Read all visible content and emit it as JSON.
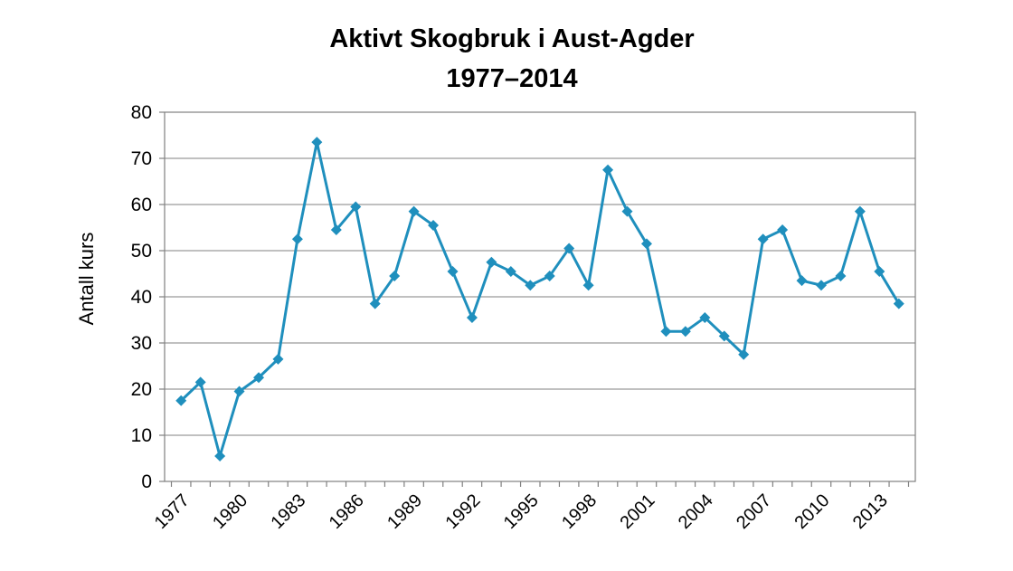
{
  "chart_data": {
    "type": "line",
    "title": [
      "Aktivt Skogbruk i Aust-Agder",
      "1977–2014"
    ],
    "xlabel": "",
    "ylabel": "Antall kurs",
    "ylim": [
      0,
      80
    ],
    "yticks": [
      0,
      10,
      20,
      30,
      40,
      50,
      60,
      70,
      80
    ],
    "xlim": [
      1976.15,
      2014.85
    ],
    "xtick_labels": [
      "1977",
      "1980",
      "1983",
      "1986",
      "1989",
      "1992",
      "1995",
      "1998",
      "2001",
      "2004",
      "2007",
      "2010",
      "2013"
    ],
    "grid": true,
    "legend": "none",
    "line_color": "#1f8fbd",
    "x": [
      1977,
      1978,
      1979,
      1980,
      1981,
      1982,
      1983,
      1984,
      1985,
      1986,
      1987,
      1988,
      1989,
      1990,
      1991,
      1992,
      1993,
      1994,
      1995,
      1996,
      1997,
      1998,
      1999,
      2000,
      2001,
      2002,
      2003,
      2004,
      2005,
      2006,
      2007,
      2008,
      2009,
      2010,
      2011,
      2012,
      2013,
      2014
    ],
    "series": [
      {
        "values": [
          17.5,
          21.5,
          5.5,
          19.5,
          22.5,
          26.5,
          52.5,
          73.5,
          54.5,
          59.5,
          38.5,
          44.5,
          58.5,
          55.5,
          45.5,
          35.5,
          47.5,
          45.5,
          42.5,
          44.5,
          50.5,
          42.5,
          67.5,
          58.5,
          51.5,
          32.5,
          32.5,
          35.5,
          31.5,
          27.5,
          52.5,
          54.5,
          43.5,
          42.5,
          44.5,
          58.5,
          45.5,
          38.5
        ]
      }
    ]
  }
}
